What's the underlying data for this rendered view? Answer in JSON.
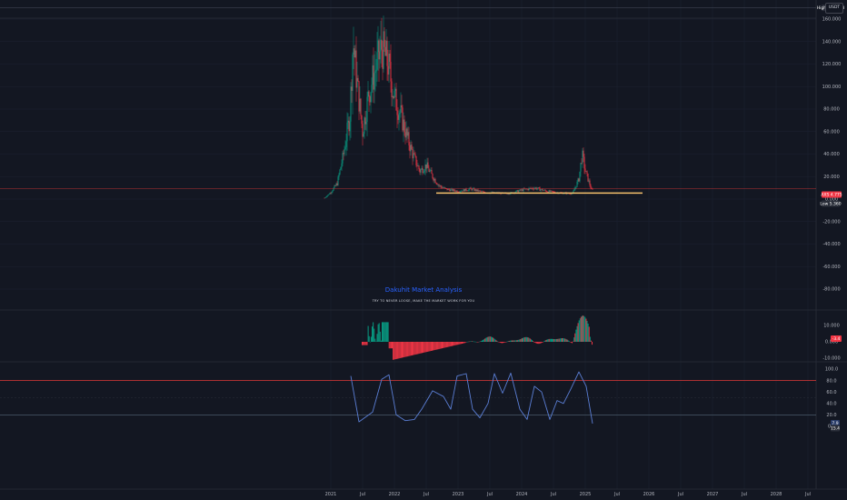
{
  "currency_label": "USDT",
  "watermark": {
    "title": "Dakuhit Market Analysis",
    "subtitle": "TRY TO NEVER LOOSE, MAKE THE MARKET WORK FOR YOU"
  },
  "price_tags": {
    "high": {
      "label": "High",
      "value": "170.488"
    },
    "last": {
      "label": "AXS",
      "value": "4.775",
      "color": "#f23645"
    },
    "low": {
      "label": "Low",
      "value": "5.360"
    }
  },
  "colors": {
    "up": "#089981",
    "down": "#f23645",
    "stoch": "#5b7fd6",
    "support": "#f5c16c",
    "band": "#e03838"
  },
  "chart_data": [
    {
      "type": "candlestick",
      "name": "price",
      "x_tick_labels": [
        "2021",
        "Jul",
        "2022",
        "Jul",
        "2023",
        "Jul",
        "2024",
        "Jul",
        "2025",
        "Jul",
        "2026",
        "Jul",
        "2027",
        "Jul",
        "2028",
        "Jul"
      ],
      "ylim": [
        -90,
        170
      ],
      "y_ticks": [
        160,
        140,
        120,
        100,
        80,
        60,
        40,
        20,
        0,
        -20,
        -40,
        -60,
        -80
      ],
      "y_tick_labels": [
        "160.000",
        "140.000",
        "120.000",
        "100.000",
        "80.000",
        "60.000",
        "40.000",
        "20.000",
        "0.000",
        "-20.000",
        "-40.000",
        "-60.000",
        "-80.000"
      ],
      "close_approx": [
        [
          2020.9,
          1
        ],
        [
          2021.0,
          6
        ],
        [
          2021.1,
          14
        ],
        [
          2021.2,
          40
        ],
        [
          2021.3,
          75
        ],
        [
          2021.35,
          140
        ],
        [
          2021.4,
          110
        ],
        [
          2021.5,
          60
        ],
        [
          2021.6,
          95
        ],
        [
          2021.7,
          115
        ],
        [
          2021.8,
          135
        ],
        [
          2021.9,
          120
        ],
        [
          2022.0,
          90
        ],
        [
          2022.1,
          75
        ],
        [
          2022.2,
          55
        ],
        [
          2022.3,
          38
        ],
        [
          2022.4,
          25
        ],
        [
          2022.5,
          30
        ],
        [
          2022.6,
          20
        ],
        [
          2022.7,
          12
        ],
        [
          2022.8,
          9
        ],
        [
          2023.0,
          7
        ],
        [
          2023.2,
          9
        ],
        [
          2023.4,
          6
        ],
        [
          2023.6,
          5.5
        ],
        [
          2023.8,
          5
        ],
        [
          2024.0,
          8
        ],
        [
          2024.2,
          10
        ],
        [
          2024.4,
          7
        ],
        [
          2024.6,
          5.5
        ],
        [
          2024.8,
          5
        ],
        [
          2024.9,
          18
        ],
        [
          2024.95,
          40
        ],
        [
          2025.0,
          25
        ],
        [
          2025.1,
          8
        ]
      ],
      "support_level": 5.36,
      "band_level": 9.2
    },
    {
      "type": "bar",
      "name": "oscillator",
      "y_ticks": [
        10,
        0,
        -10
      ],
      "y_tick_labels": [
        "10.000",
        "0.000",
        "-10.000"
      ],
      "last_value": "-3.4"
    },
    {
      "type": "line",
      "name": "stochastic",
      "ylim": [
        0,
        100
      ],
      "y_ticks": [
        100,
        80,
        60,
        40,
        20,
        0
      ],
      "y_tick_labels": [
        "100.0",
        "80.0",
        "60.0",
        "40.0",
        "20.0",
        "0.0"
      ],
      "levels": [
        80,
        20
      ],
      "last_values": [
        "7.9",
        "15.4"
      ]
    }
  ]
}
